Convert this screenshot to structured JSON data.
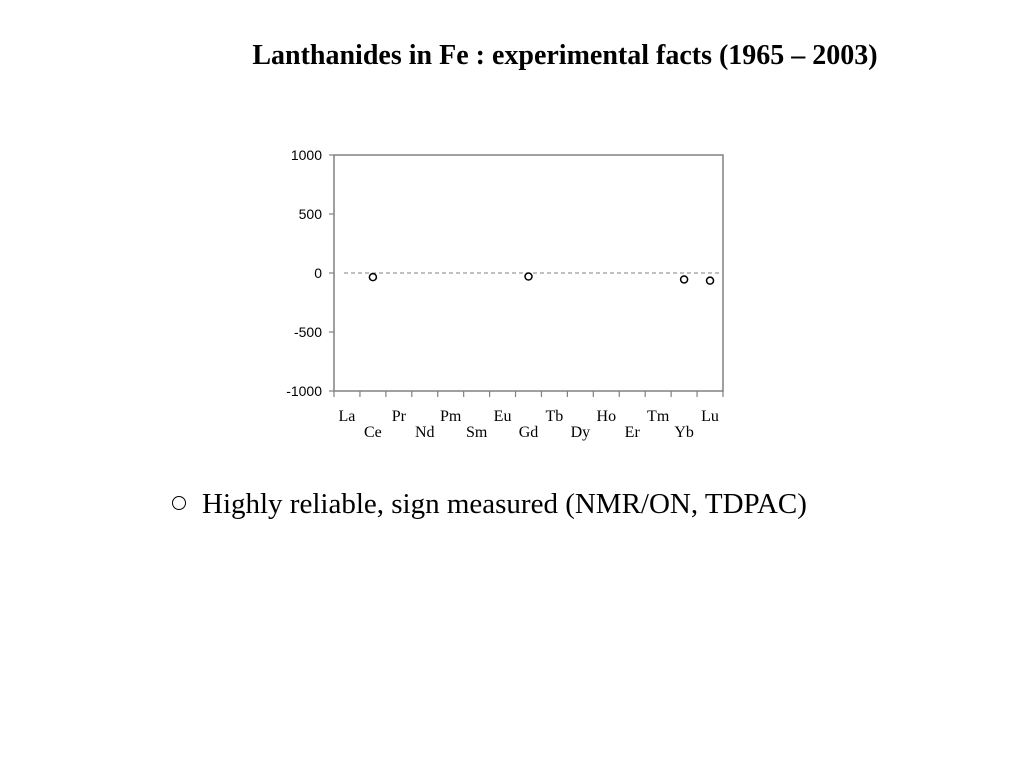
{
  "slide": {
    "title": "Lanthanides in Fe : experimental facts (1965 – 2003)"
  },
  "legend": {
    "symbol": "open-circle",
    "text": "Highly reliable, sign measured (NMR/ON, TDPAC)"
  },
  "chart_data": {
    "type": "scatter",
    "title": "",
    "xlabel": "",
    "ylabel": "",
    "categories": [
      "La",
      "Ce",
      "Pr",
      "Nd",
      "Pm",
      "Sm",
      "Eu",
      "Gd",
      "Tb",
      "Dy",
      "Ho",
      "Er",
      "Tm",
      "Yb",
      "Lu"
    ],
    "ylim": [
      -1000,
      1000
    ],
    "yticks": [
      1000,
      500,
      0,
      -500,
      -1000
    ],
    "ytick_labels": [
      "1000",
      "500",
      "0",
      "-500",
      "-1000"
    ],
    "zero_line": "dashed",
    "grid": false,
    "marker": "open-circle",
    "series": [
      {
        "points": [
          {
            "category": "Ce",
            "value": -35
          },
          {
            "category": "Gd",
            "value": -30
          },
          {
            "category": "Yb",
            "value": -55
          },
          {
            "category": "Lu",
            "value": -65
          }
        ]
      }
    ],
    "colors": {
      "marker": "#000000",
      "axis": "#808080",
      "zero_line": "#808080"
    }
  }
}
